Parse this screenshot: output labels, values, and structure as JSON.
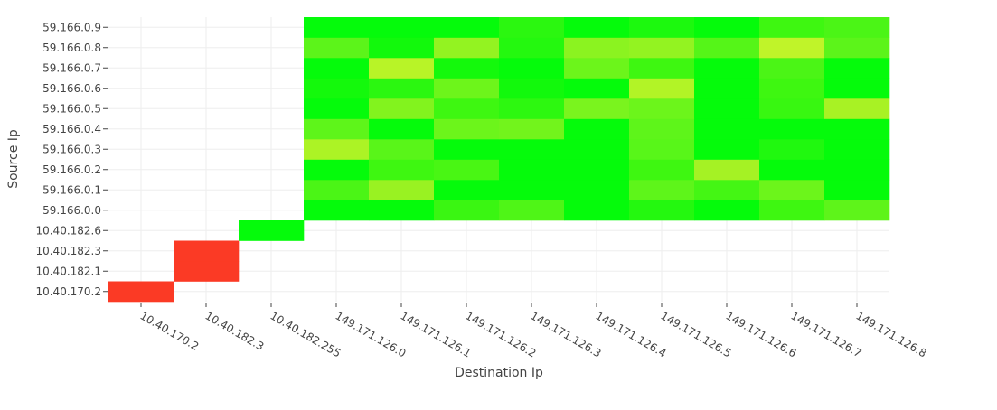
{
  "chart_data": {
    "type": "heatmap",
    "x_axis": {
      "title": "Destination Ip",
      "categories": [
        "10.40.170.2",
        "10.40.182.3",
        "10.40.182.255",
        "149.171.126.0",
        "149.171.126.1",
        "149.171.126.2",
        "149.171.126.3",
        "149.171.126.4",
        "149.171.126.5",
        "149.171.126.6",
        "149.171.126.7",
        "149.171.126.8"
      ]
    },
    "y_axis": {
      "title": "Source Ip",
      "categories": [
        "10.40.170.2",
        "10.40.182.1",
        "10.40.182.3",
        "10.40.182.6",
        "59.166.0.0",
        "59.166.0.1",
        "59.166.0.2",
        "59.166.0.3",
        "59.166.0.4",
        "59.166.0.5",
        "59.166.0.6",
        "59.166.0.7",
        "59.166.0.8",
        "59.166.0.9"
      ]
    },
    "cells_note": "cells listed as [x_index, y_index, hex_color]; y_index 0 is bottom row",
    "cells": [
      [
        0,
        0,
        "#fb3a25"
      ],
      [
        1,
        1,
        "#fb3a25"
      ],
      [
        1,
        2,
        "#fb3a25"
      ],
      [
        2,
        3,
        "#05fb0b"
      ],
      [
        3,
        4,
        "#05fb0b"
      ],
      [
        4,
        4,
        "#05fb0b"
      ],
      [
        5,
        4,
        "#3af612"
      ],
      [
        6,
        4,
        "#4ff517"
      ],
      [
        7,
        4,
        "#05fb0b"
      ],
      [
        8,
        4,
        "#24f80f"
      ],
      [
        9,
        4,
        "#05fb0b"
      ],
      [
        10,
        4,
        "#3ef711"
      ],
      [
        11,
        4,
        "#5ef41a"
      ],
      [
        3,
        5,
        "#4bf516"
      ],
      [
        4,
        5,
        "#99f222"
      ],
      [
        5,
        5,
        "#05fb0b"
      ],
      [
        6,
        5,
        "#05fb0b"
      ],
      [
        7,
        5,
        "#05fb0b"
      ],
      [
        8,
        5,
        "#5ef51a"
      ],
      [
        9,
        5,
        "#44f614"
      ],
      [
        10,
        5,
        "#6cf51b"
      ],
      [
        11,
        5,
        "#05fb0b"
      ],
      [
        3,
        6,
        "#05fb0b"
      ],
      [
        4,
        6,
        "#3ef711"
      ],
      [
        5,
        6,
        "#49f614"
      ],
      [
        6,
        6,
        "#05fb0b"
      ],
      [
        7,
        6,
        "#05fb0b"
      ],
      [
        8,
        6,
        "#3ef711"
      ],
      [
        9,
        6,
        "#a5f224"
      ],
      [
        10,
        6,
        "#05fb0b"
      ],
      [
        11,
        6,
        "#05fb0b"
      ],
      [
        3,
        7,
        "#acf325"
      ],
      [
        4,
        7,
        "#59f519"
      ],
      [
        5,
        7,
        "#05fb0b"
      ],
      [
        6,
        7,
        "#05fb0b"
      ],
      [
        7,
        7,
        "#05fb0b"
      ],
      [
        8,
        7,
        "#58f619"
      ],
      [
        9,
        7,
        "#05fb0b"
      ],
      [
        10,
        7,
        "#20f80f"
      ],
      [
        11,
        7,
        "#05fb0b"
      ],
      [
        3,
        8,
        "#5ef51a"
      ],
      [
        4,
        8,
        "#05fb0b"
      ],
      [
        5,
        8,
        "#6cf51b"
      ],
      [
        6,
        8,
        "#72f41c"
      ],
      [
        7,
        8,
        "#05fb0b"
      ],
      [
        8,
        8,
        "#5ef51a"
      ],
      [
        9,
        8,
        "#05fb0b"
      ],
      [
        10,
        8,
        "#05fb0b"
      ],
      [
        11,
        8,
        "#05fb0b"
      ],
      [
        3,
        9,
        "#05fb0b"
      ],
      [
        4,
        9,
        "#82f31e"
      ],
      [
        5,
        9,
        "#3ef711"
      ],
      [
        6,
        9,
        "#2df810"
      ],
      [
        7,
        9,
        "#7af41e"
      ],
      [
        8,
        9,
        "#6cf51b"
      ],
      [
        9,
        9,
        "#05fb0b"
      ],
      [
        10,
        9,
        "#38f711"
      ],
      [
        11,
        9,
        "#a8f224"
      ],
      [
        3,
        10,
        "#14f90c"
      ],
      [
        4,
        10,
        "#2bf710"
      ],
      [
        5,
        10,
        "#6df51b"
      ],
      [
        6,
        10,
        "#12f90c"
      ],
      [
        7,
        10,
        "#05fb0b"
      ],
      [
        8,
        10,
        "#b2f426"
      ],
      [
        9,
        10,
        "#05fb0b"
      ],
      [
        10,
        10,
        "#3ef711"
      ],
      [
        11,
        10,
        "#05fb0b"
      ],
      [
        3,
        11,
        "#05fb0b"
      ],
      [
        4,
        11,
        "#b8f427"
      ],
      [
        5,
        11,
        "#14f90c"
      ],
      [
        6,
        11,
        "#05fb0b"
      ],
      [
        7,
        11,
        "#6cf51b"
      ],
      [
        8,
        11,
        "#3ef711"
      ],
      [
        9,
        11,
        "#05fb0b"
      ],
      [
        10,
        11,
        "#4bf516"
      ],
      [
        11,
        11,
        "#05fb0b"
      ],
      [
        3,
        12,
        "#5cf41a"
      ],
      [
        4,
        12,
        "#12f90c"
      ],
      [
        5,
        12,
        "#93f321"
      ],
      [
        6,
        12,
        "#24f80f"
      ],
      [
        7,
        12,
        "#8bf320"
      ],
      [
        8,
        12,
        "#93f321"
      ],
      [
        9,
        12,
        "#55f518"
      ],
      [
        10,
        12,
        "#c0f429"
      ],
      [
        11,
        12,
        "#5cf41a"
      ],
      [
        3,
        13,
        "#05fb0b"
      ],
      [
        4,
        13,
        "#05fb0b"
      ],
      [
        5,
        13,
        "#05fb0b"
      ],
      [
        6,
        13,
        "#2bf710"
      ],
      [
        7,
        13,
        "#05fb0b"
      ],
      [
        8,
        13,
        "#1cf90e"
      ],
      [
        9,
        13,
        "#05fb0b"
      ],
      [
        10,
        13,
        "#3ef711"
      ],
      [
        11,
        13,
        "#4bf516"
      ]
    ]
  }
}
